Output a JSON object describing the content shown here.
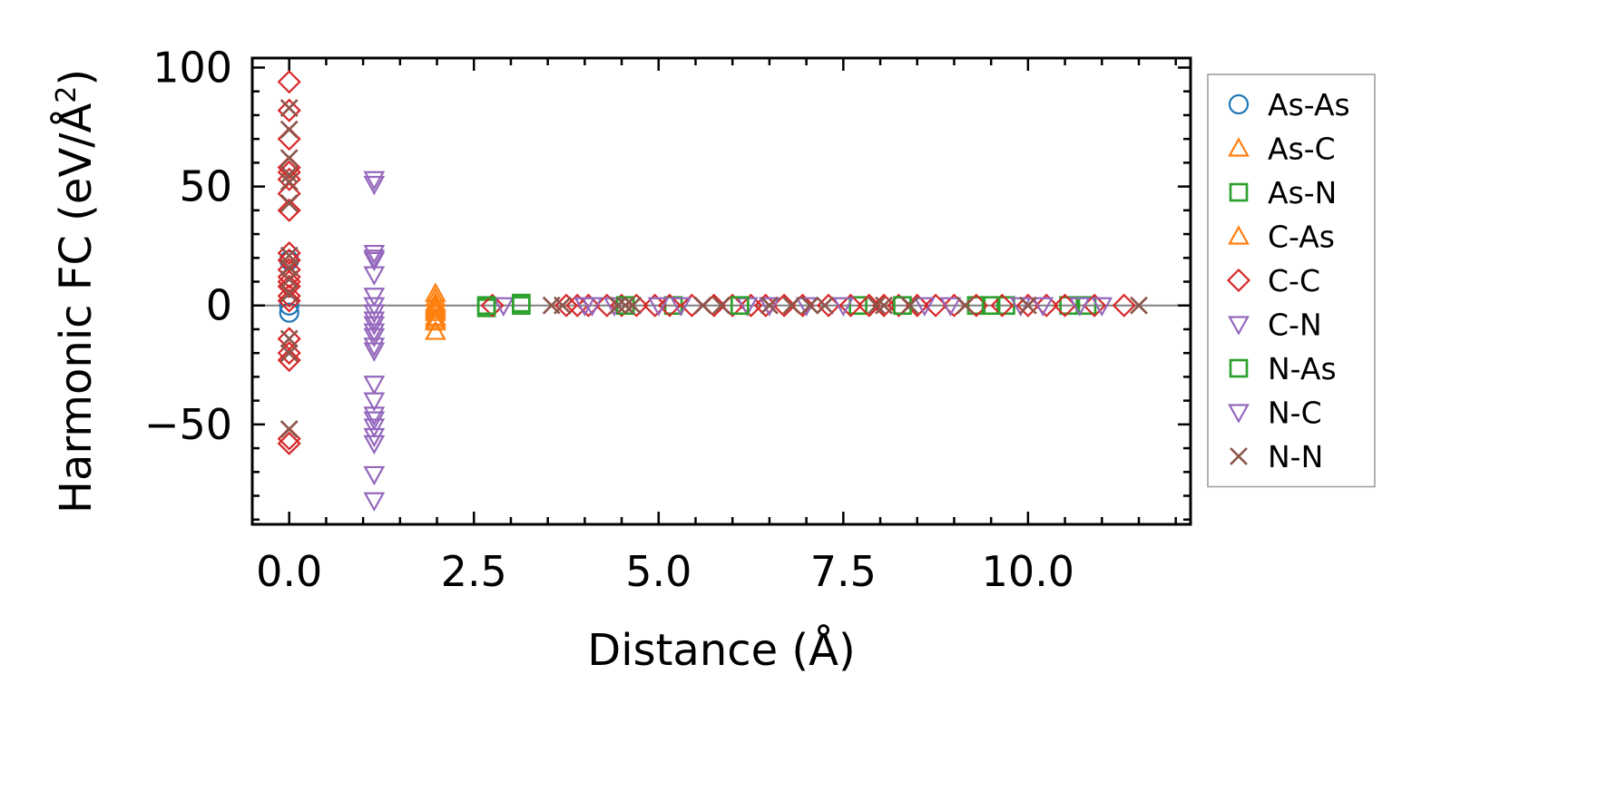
{
  "chart_data": {
    "type": "scatter",
    "xlabel": "Distance (Å)",
    "ylabel": "Harmonic FC (eV/Å²)",
    "ylabel_parts": {
      "prefix": "Harmonic FC (eV/Å",
      "superscript": "2",
      "suffix": ")"
    },
    "xlim": [
      -0.5,
      12.2
    ],
    "ylim": [
      -92,
      104
    ],
    "xticks": [
      0.0,
      2.5,
      5.0,
      7.5,
      10.0
    ],
    "xtick_labels": [
      "0.0",
      "2.5",
      "5.0",
      "7.5",
      "10.0"
    ],
    "yticks": [
      -50,
      0,
      50,
      100
    ],
    "ytick_labels": [
      "−50",
      "0",
      "50",
      "100"
    ],
    "zero_line": 0,
    "legend_position": "outside-right",
    "series": [
      {
        "name": "As-As",
        "marker": "circle",
        "color": "#1f77b4",
        "x": [
          0,
          0,
          0
        ],
        "y": [
          19,
          0,
          -3
        ]
      },
      {
        "name": "As-C",
        "marker": "triangle-up",
        "color": "#ff7f0e",
        "x": [
          1.98,
          1.98,
          1.98,
          1.98,
          1.98,
          1.98,
          1.98,
          1.98
        ],
        "y": [
          5,
          3,
          1,
          -1,
          -3,
          -5,
          -7,
          -11
        ]
      },
      {
        "name": "As-N",
        "marker": "square",
        "color": "#2ca02c",
        "x": [
          2.67,
          3.14,
          5.2,
          7.7,
          9.3,
          9.7,
          10.55,
          10.8
        ],
        "y": [
          -1,
          0,
          0,
          0,
          0,
          0,
          0,
          0
        ]
      },
      {
        "name": "C-As",
        "marker": "triangle-up",
        "color": "#ff7f0e",
        "x": [
          1.98,
          1.98,
          1.98
        ],
        "y": [
          0,
          -2,
          -6
        ]
      },
      {
        "name": "C-C",
        "marker": "diamond",
        "color": "#d62728",
        "x": [
          0,
          0,
          0,
          0,
          0,
          0,
          0,
          0,
          0,
          0,
          0,
          0,
          0,
          0,
          0,
          0,
          0,
          0,
          0,
          0,
          0,
          2.75,
          3.75,
          3.9,
          4.05,
          4.3,
          4.5,
          4.7,
          4.95,
          5.15,
          5.45,
          5.75,
          6.0,
          6.25,
          6.45,
          6.7,
          6.95,
          7.3,
          7.6,
          7.85,
          8.05,
          8.25,
          8.5,
          8.75,
          9.0,
          9.3,
          9.65,
          10.0,
          10.25,
          10.5,
          10.9,
          11.3
        ],
        "y": [
          94,
          82,
          70,
          58,
          56,
          53,
          47,
          40,
          22,
          19,
          15,
          12,
          10,
          8,
          4,
          2,
          -14,
          -20,
          -23,
          -56,
          -58,
          0,
          0,
          0,
          0,
          0,
          0,
          0,
          0,
          0,
          0,
          0,
          0,
          0,
          0,
          0,
          0,
          0,
          0,
          0,
          0,
          0,
          0,
          0,
          0,
          0,
          0,
          0,
          0,
          0,
          0,
          0
        ]
      },
      {
        "name": "C-N",
        "marker": "triangle-down",
        "color": "#9467bd",
        "x": [
          1.15,
          1.15,
          1.15,
          1.15,
          1.15,
          1.15,
          1.15,
          1.15,
          1.15,
          1.15,
          1.15,
          1.15,
          1.15,
          1.15,
          1.15,
          1.15,
          1.15,
          1.15,
          2.9,
          4.1,
          4.4,
          5.3,
          6.2,
          6.5,
          7.5,
          8.6,
          9.9,
          10.2,
          11.0
        ],
        "y": [
          53,
          51,
          22,
          19,
          13,
          0,
          -3,
          -8,
          -13,
          -17,
          -33,
          -40,
          -48,
          -51,
          -55,
          -58,
          -71,
          -82,
          0,
          0,
          0,
          0,
          0,
          0,
          0,
          0,
          0,
          0,
          0
        ]
      },
      {
        "name": "N-As",
        "marker": "square",
        "color": "#2ca02c",
        "x": [
          2.67,
          3.14,
          4.55,
          6.1,
          8.3,
          9.5
        ],
        "y": [
          0,
          1,
          0,
          0,
          0,
          0
        ]
      },
      {
        "name": "N-C",
        "marker": "triangle-down",
        "color": "#9467bd",
        "x": [
          1.15,
          1.15,
          1.15,
          1.15,
          1.15,
          1.15,
          4.0,
          5.0,
          7.0,
          8.95,
          10.7
        ],
        "y": [
          20,
          4,
          -6,
          -11,
          -19,
          -46,
          0,
          0,
          0,
          0,
          0
        ]
      },
      {
        "name": "N-N",
        "marker": "x",
        "color": "#8c564b",
        "x": [
          0,
          0,
          0,
          0,
          0,
          0,
          0,
          0,
          0,
          0,
          0,
          0,
          0,
          3.55,
          3.7,
          4.45,
          4.55,
          4.65,
          5.6,
          5.85,
          6.5,
          6.8,
          7.05,
          7.25,
          7.95,
          8.05,
          8.4,
          9.15,
          10.0,
          11.5
        ],
        "y": [
          83,
          74,
          62,
          55,
          52,
          43,
          21,
          16,
          11,
          5,
          -14,
          -20,
          -52,
          0,
          0,
          0,
          0,
          0,
          0,
          0,
          0,
          0,
          0,
          0,
          0,
          0,
          0,
          0,
          0,
          0
        ]
      }
    ]
  }
}
